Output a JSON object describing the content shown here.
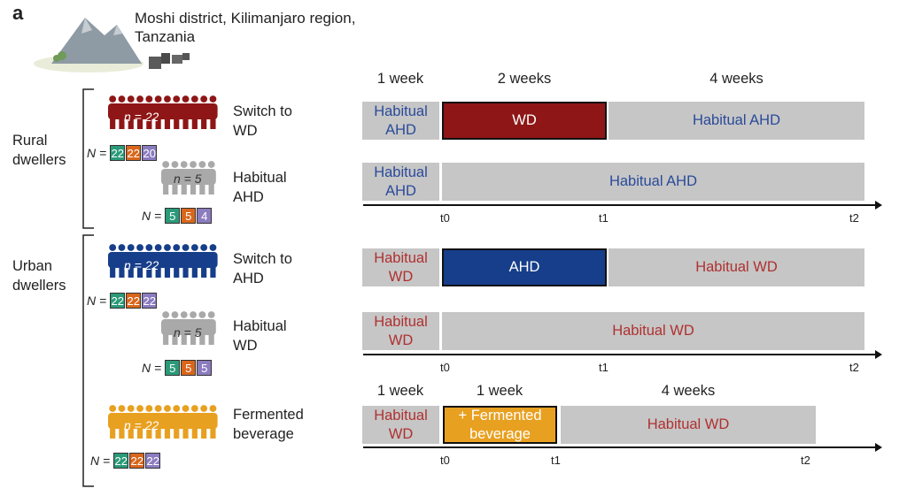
{
  "panel_letter": "a",
  "location": {
    "line1": "Moshi district, Kilimanjaro region,",
    "line2": "Tanzania"
  },
  "colors": {
    "rural_blue_text": "#2a4a9a",
    "urban_red_text": "#b03030",
    "wd_bar": "#8e1616",
    "ahd_bar": "#163e8a",
    "fermented_bar": "#e8a020",
    "grey_bar": "#c6c6c6",
    "n_green": "#2a9a78",
    "n_orange": "#d9661b",
    "n_purple": "#8b7cc0"
  },
  "groups": {
    "rural": "Rural\ndwellers",
    "urban": "Urban\ndwellers"
  },
  "arms": [
    {
      "id": "rural-switch",
      "label_1": "Switch to",
      "label_2": "WD",
      "n": "n = 22",
      "N_label": "N",
      "counts": [
        "22",
        "22",
        "20"
      ]
    },
    {
      "id": "rural-habitual",
      "label_1": "Habitual",
      "label_2": "AHD",
      "n": "n = 5",
      "N_label": "N",
      "counts": [
        "5",
        "5",
        "4"
      ]
    },
    {
      "id": "urban-switch",
      "label_1": "Switch to",
      "label_2": "AHD",
      "n": "n = 22",
      "N_label": "N",
      "counts": [
        "22",
        "22",
        "22"
      ]
    },
    {
      "id": "urban-habitual",
      "label_1": "Habitual",
      "label_2": "WD",
      "n": "n = 5",
      "N_label": "N",
      "counts": [
        "5",
        "5",
        "5"
      ]
    },
    {
      "id": "fermented",
      "label_1": "Fermented",
      "label_2": "beverage",
      "n": "n = 22",
      "N_label": "N",
      "counts": [
        "22",
        "22",
        "22"
      ]
    }
  ],
  "timeline_top": {
    "headers": [
      "1 week",
      "2 weeks",
      "4 weeks"
    ],
    "ticks": [
      "t0",
      "t1",
      "t2"
    ],
    "rows": [
      {
        "seg1": "Habitual AHD",
        "seg2": "WD",
        "seg3": "Habitual AHD"
      },
      {
        "seg1": "Habitual AHD",
        "seg2": "Habitual AHD"
      }
    ]
  },
  "timeline_mid": {
    "ticks": [
      "t0",
      "t1",
      "t2"
    ],
    "rows": [
      {
        "seg1": "Habitual WD",
        "seg2": "AHD",
        "seg3": "Habitual WD"
      },
      {
        "seg1": "Habitual WD",
        "seg2": "Habitual WD"
      }
    ]
  },
  "timeline_bottom": {
    "headers": [
      "1 week",
      "1 week",
      "4 weeks"
    ],
    "ticks": [
      "t0",
      "t1",
      "t2"
    ],
    "row": {
      "seg1": "Habitual WD",
      "seg2": "+ Fermented beverage",
      "seg3": "Habitual WD"
    }
  }
}
